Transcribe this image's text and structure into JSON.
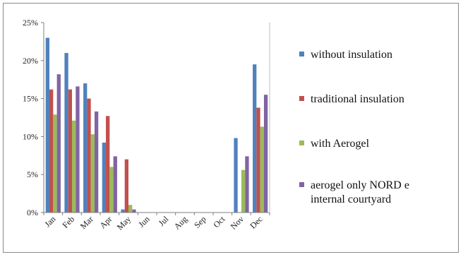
{
  "chart_data": {
    "type": "bar",
    "categories": [
      "Jan",
      "Feb",
      "Mar",
      "Apr",
      "May",
      "Jun",
      "Jul",
      "Aug",
      "Sep",
      "Oct",
      "Nov",
      "Dec"
    ],
    "series": [
      {
        "name": "without insulation",
        "color": "#4f81bd",
        "values": [
          23.0,
          21.0,
          17.0,
          9.2,
          0.4,
          0,
          0,
          0,
          0,
          0,
          9.8,
          19.5
        ]
      },
      {
        "name": "traditional insulation",
        "color": "#c0504d",
        "values": [
          16.2,
          16.2,
          15.0,
          12.7,
          7.0,
          0,
          0,
          0,
          0,
          0,
          0,
          13.8
        ]
      },
      {
        "name": "with Aerogel",
        "color": "#9bbb59",
        "values": [
          12.9,
          12.1,
          10.3,
          6.0,
          1.0,
          0,
          0,
          0,
          0,
          0,
          5.6,
          11.3
        ]
      },
      {
        "name": "aerogel only NORD e internal courtyard",
        "color": "#8064a2",
        "values": [
          18.2,
          16.6,
          13.3,
          7.4,
          0.4,
          0,
          0,
          0,
          0,
          0,
          7.4,
          15.5
        ]
      }
    ],
    "legend_lines": [
      [
        "without insulation"
      ],
      [
        "traditional insulation"
      ],
      [
        "with Aerogel"
      ],
      [
        "aerogel only NORD e",
        "internal courtyard"
      ]
    ],
    "yticks": [
      "0%",
      "5%",
      "10%",
      "15%",
      "20%",
      "25%"
    ],
    "ylim": [
      0,
      25
    ],
    "y_unit": "%",
    "grid": false,
    "legend_position": "right",
    "title": "",
    "xlabel": "",
    "ylabel": ""
  }
}
